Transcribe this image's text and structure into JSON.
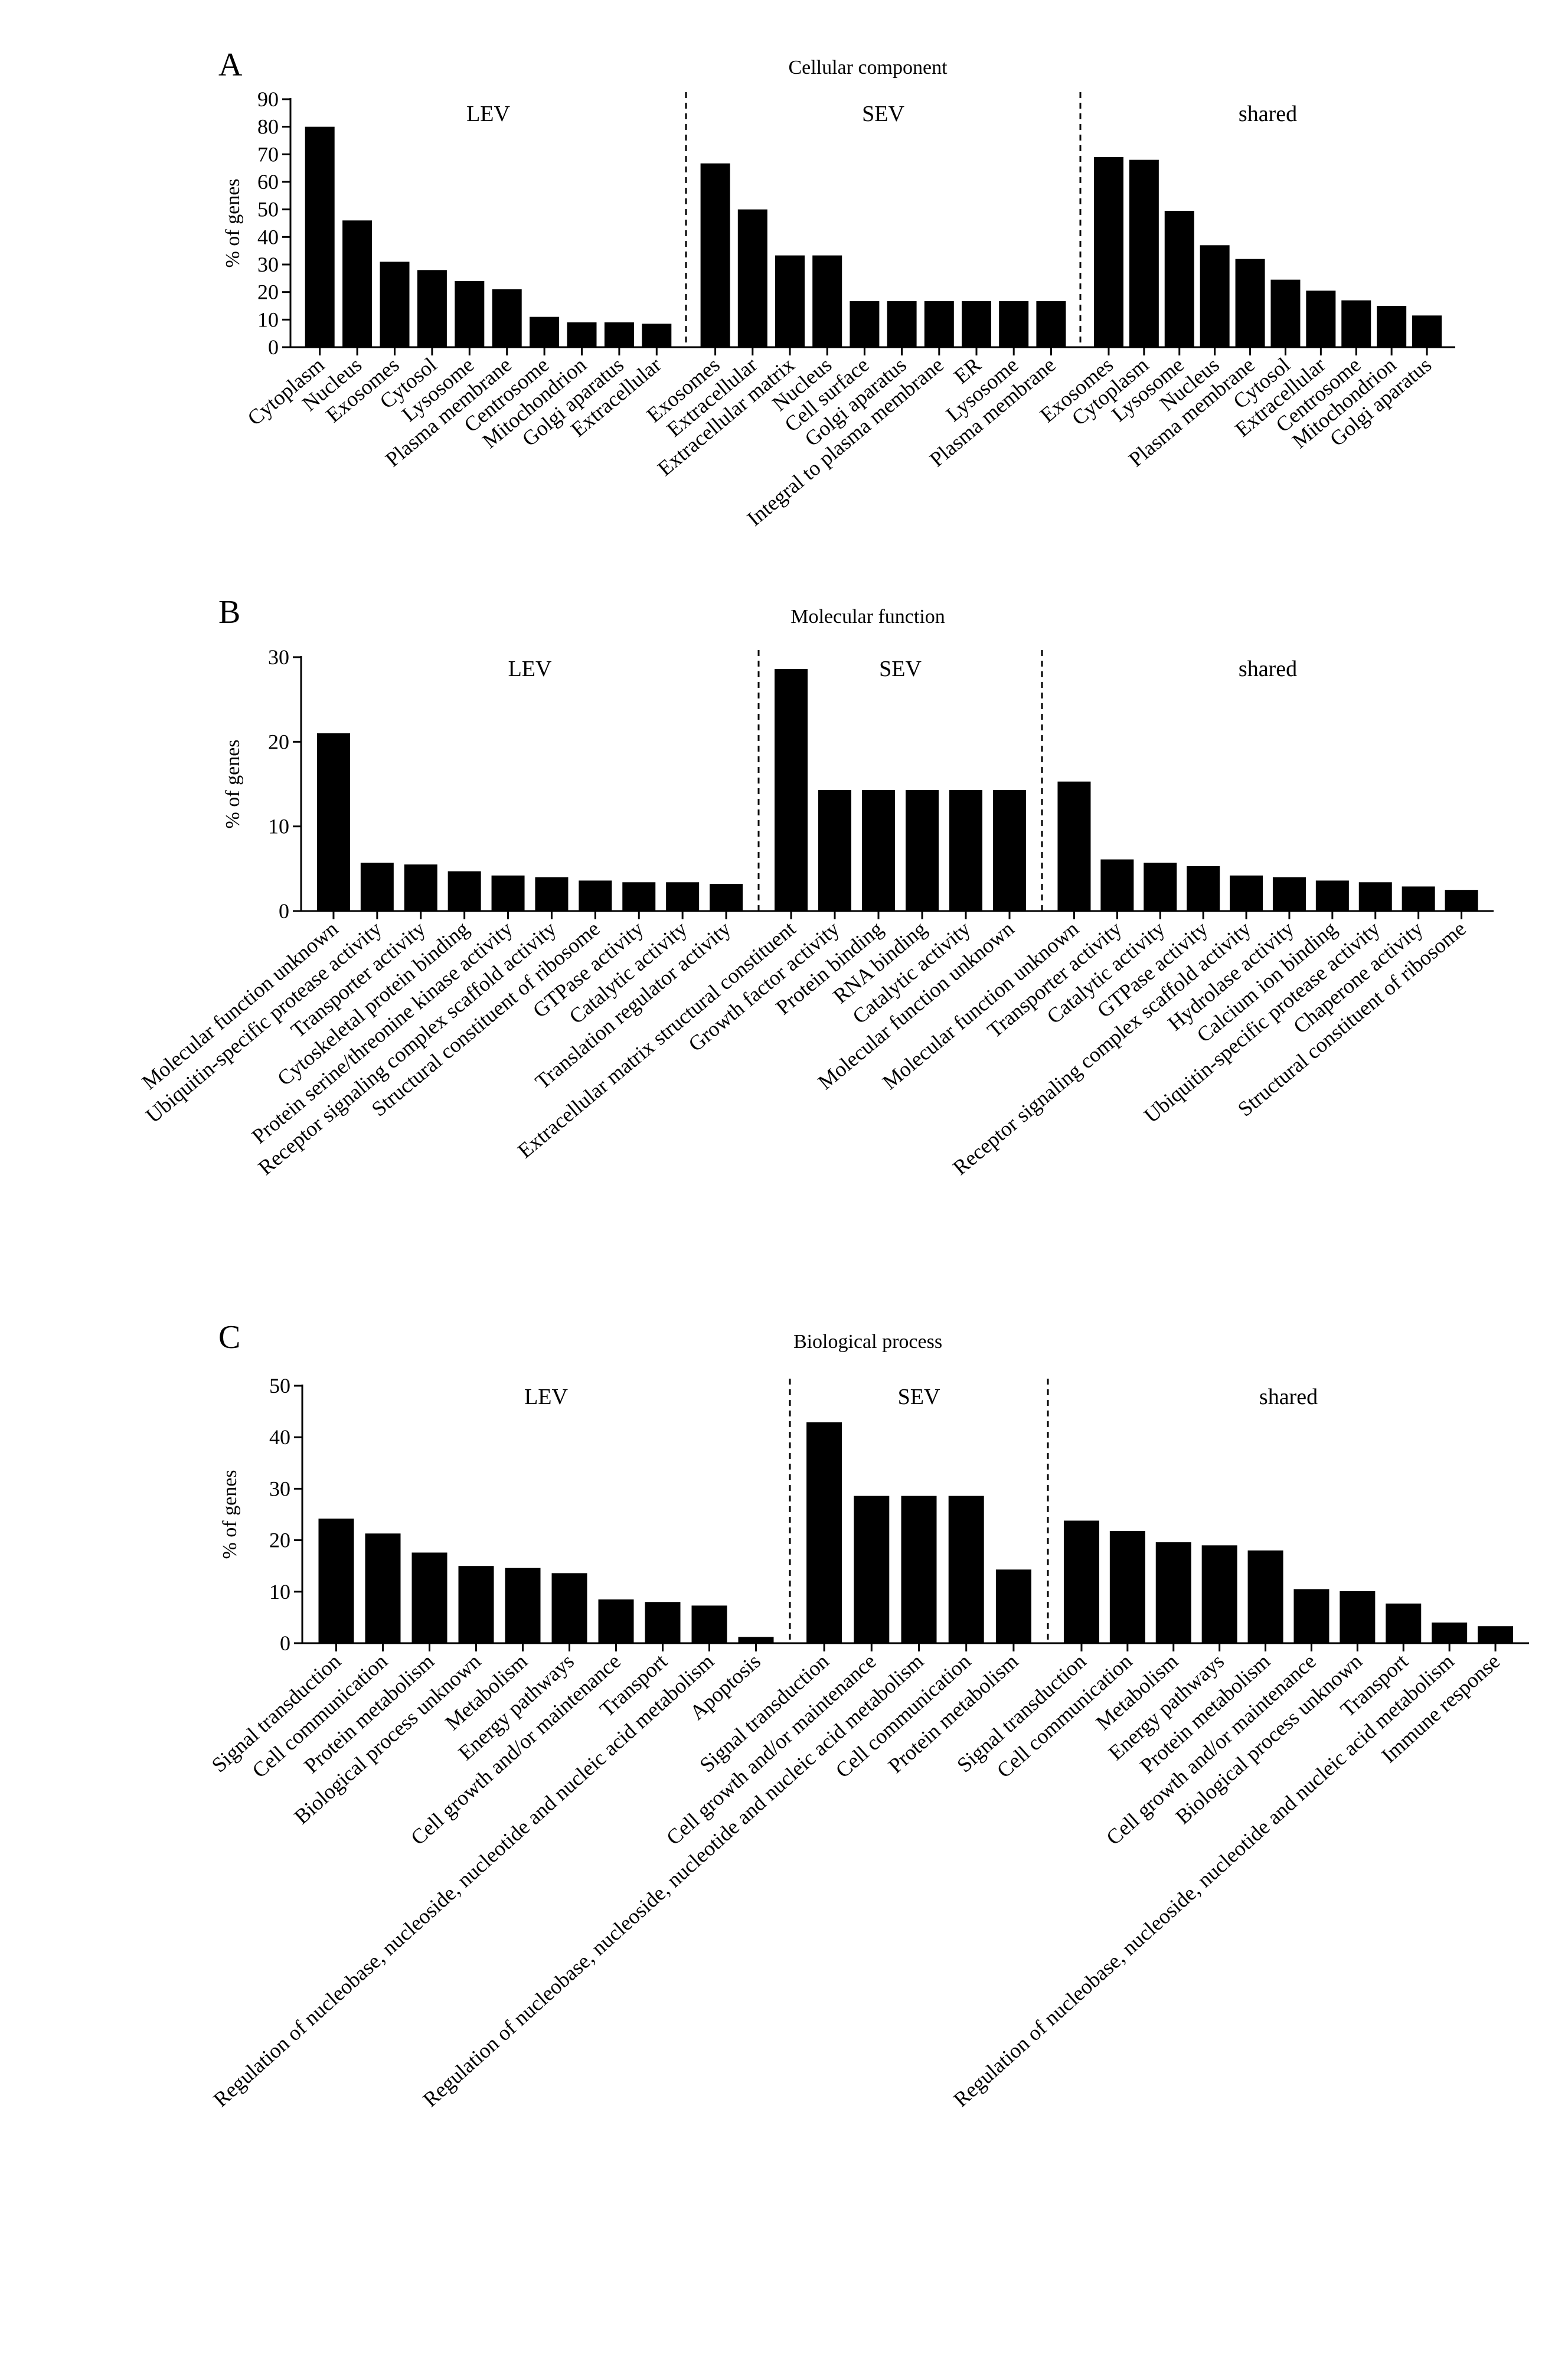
{
  "chart_data": [
    {
      "type": "bar",
      "panel": "A",
      "title": "Cellular component",
      "ylabel": "% of genes",
      "ylim": [
        0,
        90
      ],
      "yticks": [
        0,
        10,
        20,
        30,
        40,
        50,
        60,
        70,
        80,
        90
      ],
      "groups": [
        {
          "name": "LEV",
          "categories": [
            "Cytoplasm",
            "Nucleus",
            "Exosomes",
            "Cytosol",
            "Lysosome",
            "Plasma membrane",
            "Centrosome",
            "Mitochondrion",
            "Golgi aparatus",
            "Extracellular"
          ],
          "values": [
            80,
            46,
            31,
            28,
            24,
            21,
            11,
            9,
            9,
            8.5
          ]
        },
        {
          "name": "SEV",
          "categories": [
            "Exosomes",
            "Extracellular",
            "Extracellular matrix",
            "Nucleus",
            "Cell surface",
            "Golgi aparatus",
            "Integral to plasma membrane",
            "ER",
            "Lysosome",
            "Plasma membrane"
          ],
          "values": [
            66.7,
            50,
            33.3,
            33.3,
            16.7,
            16.7,
            16.7,
            16.7,
            16.7,
            16.7
          ]
        },
        {
          "name": "shared",
          "categories": [
            "Exosomes",
            "Cytoplasm",
            "Lysosome",
            "Nucleus",
            "Plasma membrane",
            "Cytosol",
            "Extracellular",
            "Centrosome",
            "Mitochondrion",
            "Golgi aparatus"
          ],
          "values": [
            69,
            68,
            49.5,
            37,
            32,
            24.5,
            20.5,
            17,
            15,
            11.5
          ]
        }
      ]
    },
    {
      "type": "bar",
      "panel": "B",
      "title": "Molecular function",
      "ylabel": "% of genes",
      "ylim": [
        0,
        30
      ],
      "yticks": [
        0,
        10,
        20,
        30
      ],
      "groups": [
        {
          "name": "LEV",
          "categories": [
            "Molecular function unknown",
            "Ubiquitin-specific protease activity",
            "Transporter activity",
            "Cytoskeletal protein binding",
            "Protein serine/threonine kinase activity",
            "Receptor signaling complex scaffold activity",
            "Structural constituent of ribosome",
            "GTPase activity",
            "Catalytic activity",
            "Translation regulator activity"
          ],
          "values": [
            21,
            5.7,
            5.5,
            4.7,
            4.2,
            4,
            3.6,
            3.4,
            3.4,
            3.2
          ]
        },
        {
          "name": "SEV",
          "categories": [
            "Extracellular matrix structural constituent",
            "Growth factor activity",
            "Protein binding",
            "RNA binding",
            "Catalytic activity",
            "Molecular function unknown"
          ],
          "values": [
            28.6,
            14.3,
            14.3,
            14.3,
            14.3,
            14.3
          ]
        },
        {
          "name": "shared",
          "categories": [
            "Molecular function unknown",
            "Transporter activity",
            "Catalytic activity",
            "GTPase activity",
            "Receptor signaling complex scaffold activity",
            "Hydrolase activity",
            "Calcium ion binding",
            "Ubiquitin-specific protease activity",
            "Chaperone activity",
            "Structural constituent of ribosome"
          ],
          "values": [
            15.3,
            6.1,
            5.7,
            5.3,
            4.2,
            4,
            3.6,
            3.4,
            2.9,
            2.5
          ]
        }
      ]
    },
    {
      "type": "bar",
      "panel": "C",
      "title": "Biological process",
      "ylabel": "% of genes",
      "ylim": [
        0,
        50
      ],
      "yticks": [
        0,
        10,
        20,
        30,
        40,
        50
      ],
      "groups": [
        {
          "name": "LEV",
          "categories": [
            "Signal transduction",
            "Cell communication",
            "Protein metabolism",
            "Biological process unknown",
            "Metabolism",
            "Energy pathways",
            "Cell growth and/or maintenance",
            "Transport",
            "Regulation of nucleobase, nucleoside, nucleotide and nucleic acid metabolism",
            "Apoptosis"
          ],
          "values": [
            24.2,
            21.3,
            17.6,
            15,
            14.6,
            13.6,
            8.5,
            8,
            7.3,
            1.2
          ]
        },
        {
          "name": "SEV",
          "categories": [
            "Signal transduction",
            "Cell growth and/or maintenance",
            "Regulation of nucleobase, nucleoside, nucleotide and nucleic acid metabolism",
            "Cell communication",
            "Protein metabolism"
          ],
          "values": [
            42.9,
            28.6,
            28.6,
            28.6,
            14.3
          ]
        },
        {
          "name": "shared",
          "categories": [
            "Signal transduction",
            "Cell communication",
            "Metabolism",
            "Energy pathways",
            "Protein metabolism",
            "Cell growth and/or maintenance",
            "Biological process unknown",
            "Transport",
            "Regulation of nucleobase, nucleoside, nucleotide and nucleic acid metabolism",
            "Immune response"
          ],
          "values": [
            23.8,
            21.8,
            19.6,
            19,
            18,
            10.5,
            10.1,
            7.7,
            4,
            3.3
          ]
        }
      ]
    }
  ]
}
